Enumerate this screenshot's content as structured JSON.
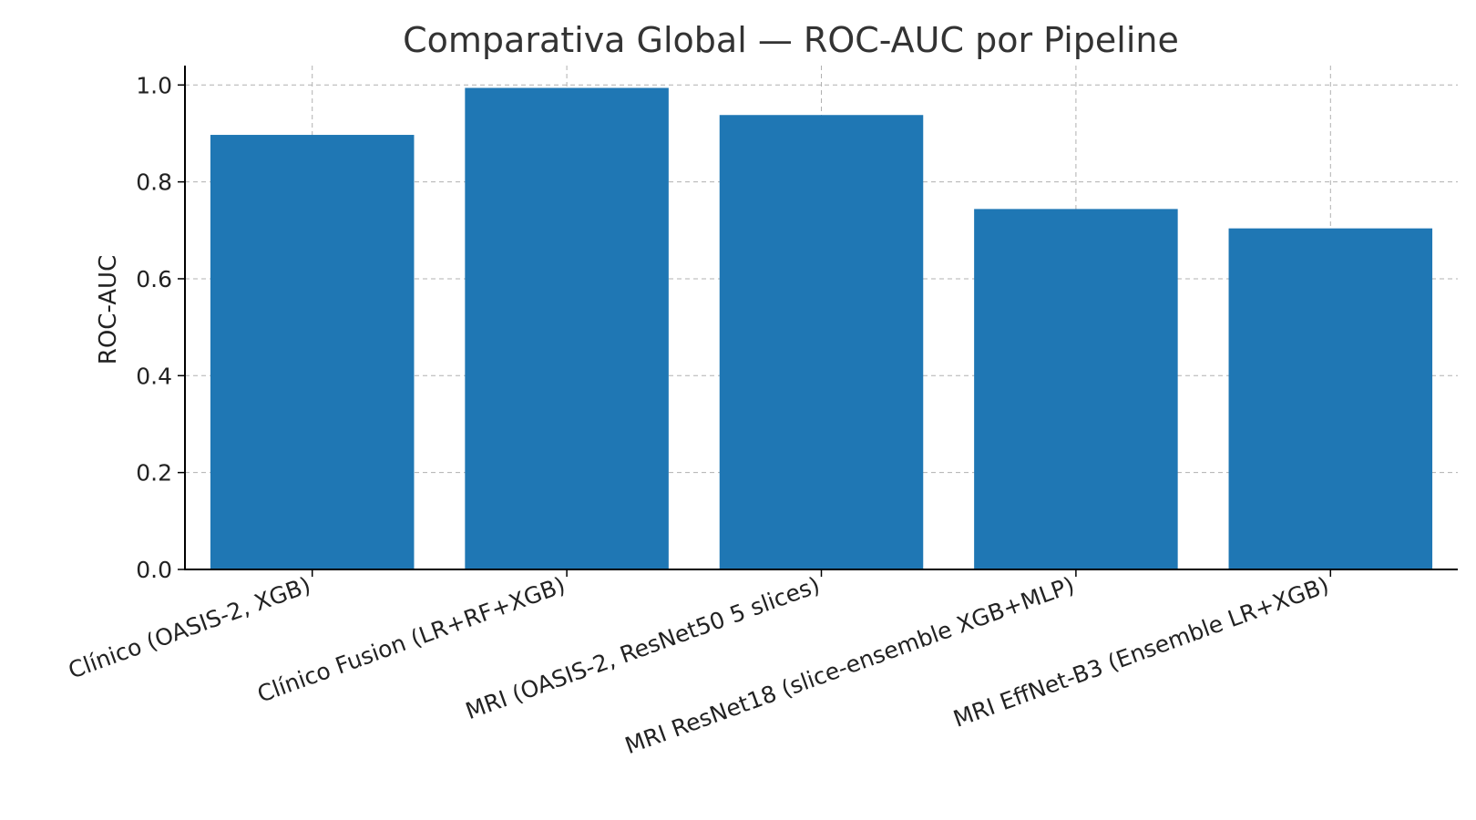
{
  "chart_data": {
    "type": "bar",
    "title": "Comparativa Global — ROC-AUC por Pipeline",
    "xlabel": "",
    "ylabel": "ROC-AUC",
    "categories": [
      "Clínico (OASIS-2, XGB)",
      "Clínico Fusion (LR+RF+XGB)",
      "MRI (OASIS-2, ResNet50 5 slices)",
      "MRI ResNet18 (slice-ensemble XGB+MLP)",
      "MRI EffNet-B3 (Ensemble LR+XGB)"
    ],
    "values": [
      0.897,
      0.994,
      0.938,
      0.744,
      0.704
    ],
    "ylim": [
      0,
      1.04
    ],
    "yticks": [
      "0.0",
      "0.2",
      "0.4",
      "0.6",
      "0.8",
      "1.0"
    ],
    "grid": true,
    "bar_color": "#1f77b4"
  }
}
